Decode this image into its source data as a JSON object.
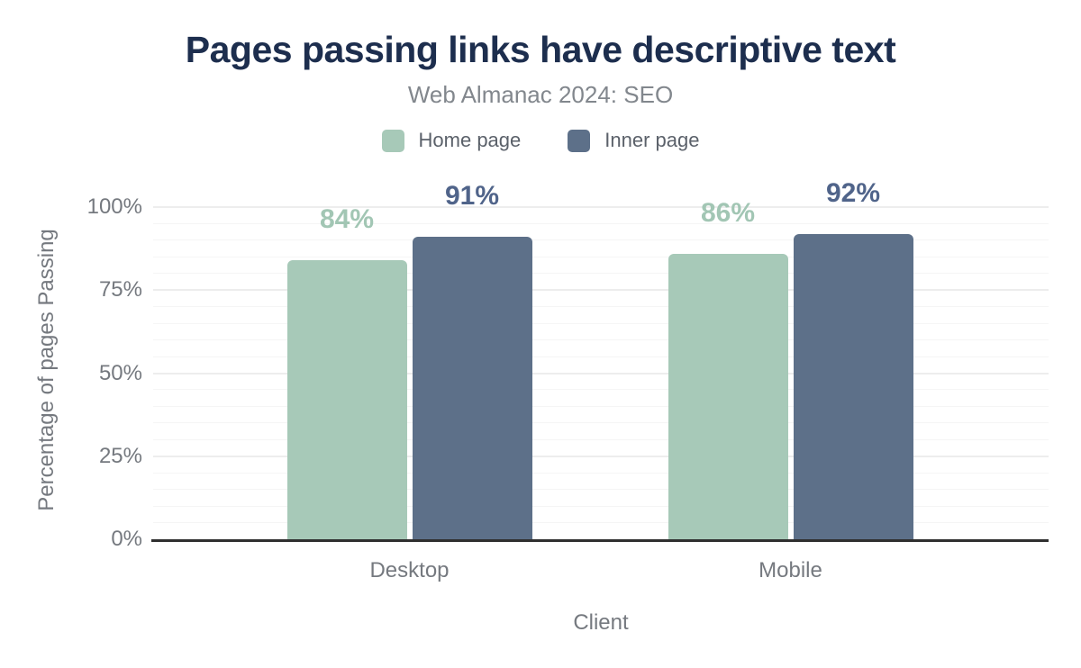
{
  "chart_data": {
    "type": "bar",
    "title": "Pages passing links have descriptive text",
    "subtitle": "Web Almanac 2024: SEO",
    "categories": [
      "Desktop",
      "Mobile"
    ],
    "series": [
      {
        "name": "Home page",
        "values": [
          84,
          86
        ],
        "color": "#a7c9b8",
        "label_color": "#a2c6b4"
      },
      {
        "name": "Inner page",
        "values": [
          91,
          92
        ],
        "color": "#5d7089",
        "label_color": "#50648a"
      }
    ],
    "xlabel": "Client",
    "ylabel": "Percentage of pages Passing",
    "ylim": [
      0,
      100
    ],
    "yticks": [
      0,
      25,
      50,
      75,
      100
    ],
    "ytick_suffix": "%",
    "value_label_suffix": "%",
    "grid": {
      "orientation": "horizontal",
      "minor_step": 5,
      "major_step": 25
    },
    "legend_position": "top"
  },
  "colors": {
    "background": "#ffffff",
    "title": "#1d2e4e",
    "subtitle": "#82878d",
    "axis_text": "#75797f",
    "legend_text": "#5b616a",
    "baseline": "#2f2f2f",
    "gridline_minor": "#f5f5f5",
    "gridline_major": "#ededed"
  }
}
